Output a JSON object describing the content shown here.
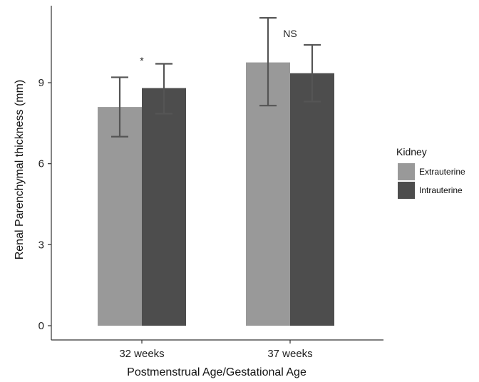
{
  "chart_data": {
    "type": "bar",
    "title": "",
    "xlabel": "Postmenstrual Age/Gestational Age",
    "ylabel": "Renal Parenchymal thickness (mm)",
    "categories": [
      "32 weeks",
      "37 weeks"
    ],
    "ylim": [
      0,
      11.8
    ],
    "yticks": [
      0,
      3,
      6,
      9
    ],
    "grid": false,
    "legend": {
      "title": "Kidney",
      "position": "right"
    },
    "series": [
      {
        "name": "Extrauterine",
        "color": "#999999",
        "values": [
          8.1,
          9.75
        ],
        "error_low": [
          7.0,
          8.15
        ],
        "error_high": [
          9.2,
          11.4
        ]
      },
      {
        "name": "Intrauterine",
        "color": "#4d4d4d",
        "values": [
          8.8,
          9.35
        ],
        "error_low": [
          7.85,
          8.3
        ],
        "error_high": [
          9.7,
          10.4
        ]
      }
    ],
    "annotations": [
      "*",
      "NS"
    ]
  }
}
